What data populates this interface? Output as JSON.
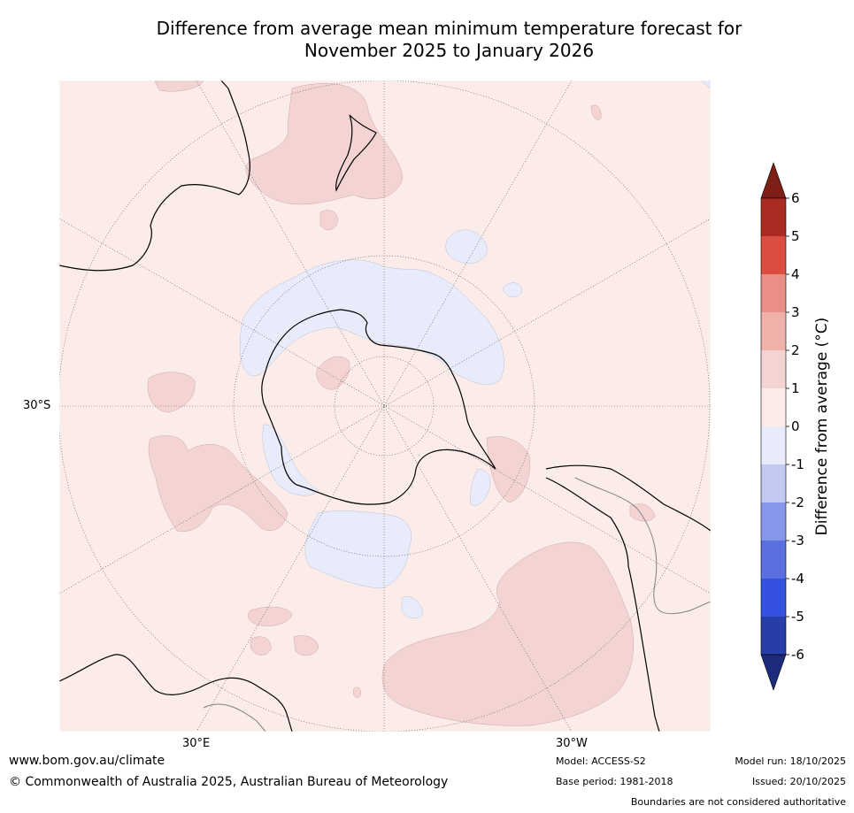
{
  "title": {
    "line1": "Difference from average mean minimum temperature forecast for",
    "line2": "November 2025 to January 2026"
  },
  "map": {
    "projection": "south-polar-stereographic",
    "lat_label_left": "30°S",
    "lon_labels": [
      "30°E",
      "30°W"
    ],
    "colors": {
      "background_0_to_1": "#fbecea",
      "band_1_to_2": "#f4d4d2",
      "band_neg1_to_0": "#e8ecfa",
      "coast": "#000000",
      "borders": "#808080",
      "grid": "#555555"
    }
  },
  "colorbar": {
    "label": "Difference from average (°C)",
    "ticks": [
      "6",
      "5",
      "4",
      "3",
      "2",
      "1",
      "0",
      "-1",
      "-2",
      "-3",
      "-4",
      "-5",
      "-6"
    ],
    "colors_top_to_bottom": [
      "#7d1f16",
      "#aa2b22",
      "#db4d40",
      "#e98f85",
      "#f0b1aa",
      "#f4d4d2",
      "#fbecea",
      "#e8ecfa",
      "#c1c8f2",
      "#8697ea",
      "#5a70e1",
      "#3451e0",
      "#273ea9",
      "#1e2b7d"
    ]
  },
  "footer": {
    "url": "www.bom.gov.au/climate",
    "copyright": "© Commonwealth of Australia 2025, Australian Bureau of Meteorology",
    "model": "Model: ACCESS-S2",
    "base_period": "Base period: 1981-2018",
    "model_run": "Model run: 18/10/2025",
    "issued": "Issued: 20/10/2025",
    "disclaimer": "Boundaries are not considered authoritative"
  }
}
